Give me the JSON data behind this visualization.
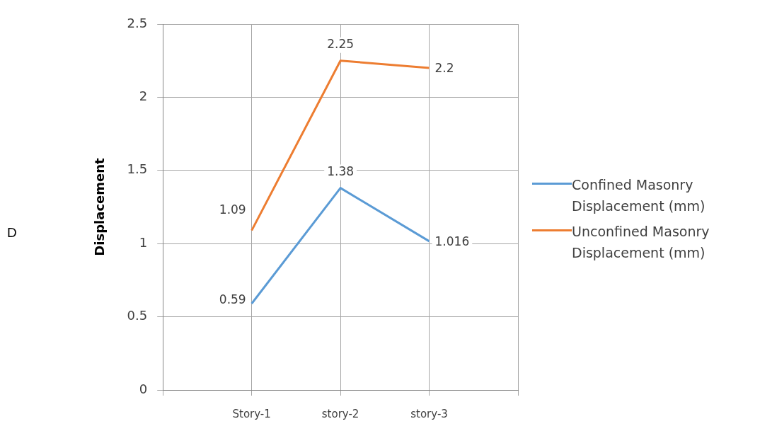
{
  "chart_data": {
    "type": "line",
    "ylabel": "Displacement",
    "categories": [
      null,
      "Story-1",
      "story-2",
      "story-3",
      null
    ],
    "series": [
      {
        "name": "Confined Masonry Displacement (mm)",
        "color": "#5b9bd5",
        "values": [
          null,
          0.59,
          1.38,
          1.016,
          null
        ]
      },
      {
        "name": "Unconfined Masonry Displacement (mm)",
        "color": "#ed7d31",
        "values": [
          null,
          1.09,
          2.25,
          2.2,
          null
        ]
      }
    ],
    "ylim": [
      0,
      2.5
    ],
    "yticks": [
      0,
      0.5,
      1,
      1.5,
      2,
      2.5
    ],
    "grid": true,
    "legend": "right",
    "data_labels": true,
    "marker": "none",
    "annotations": [
      "D"
    ]
  }
}
